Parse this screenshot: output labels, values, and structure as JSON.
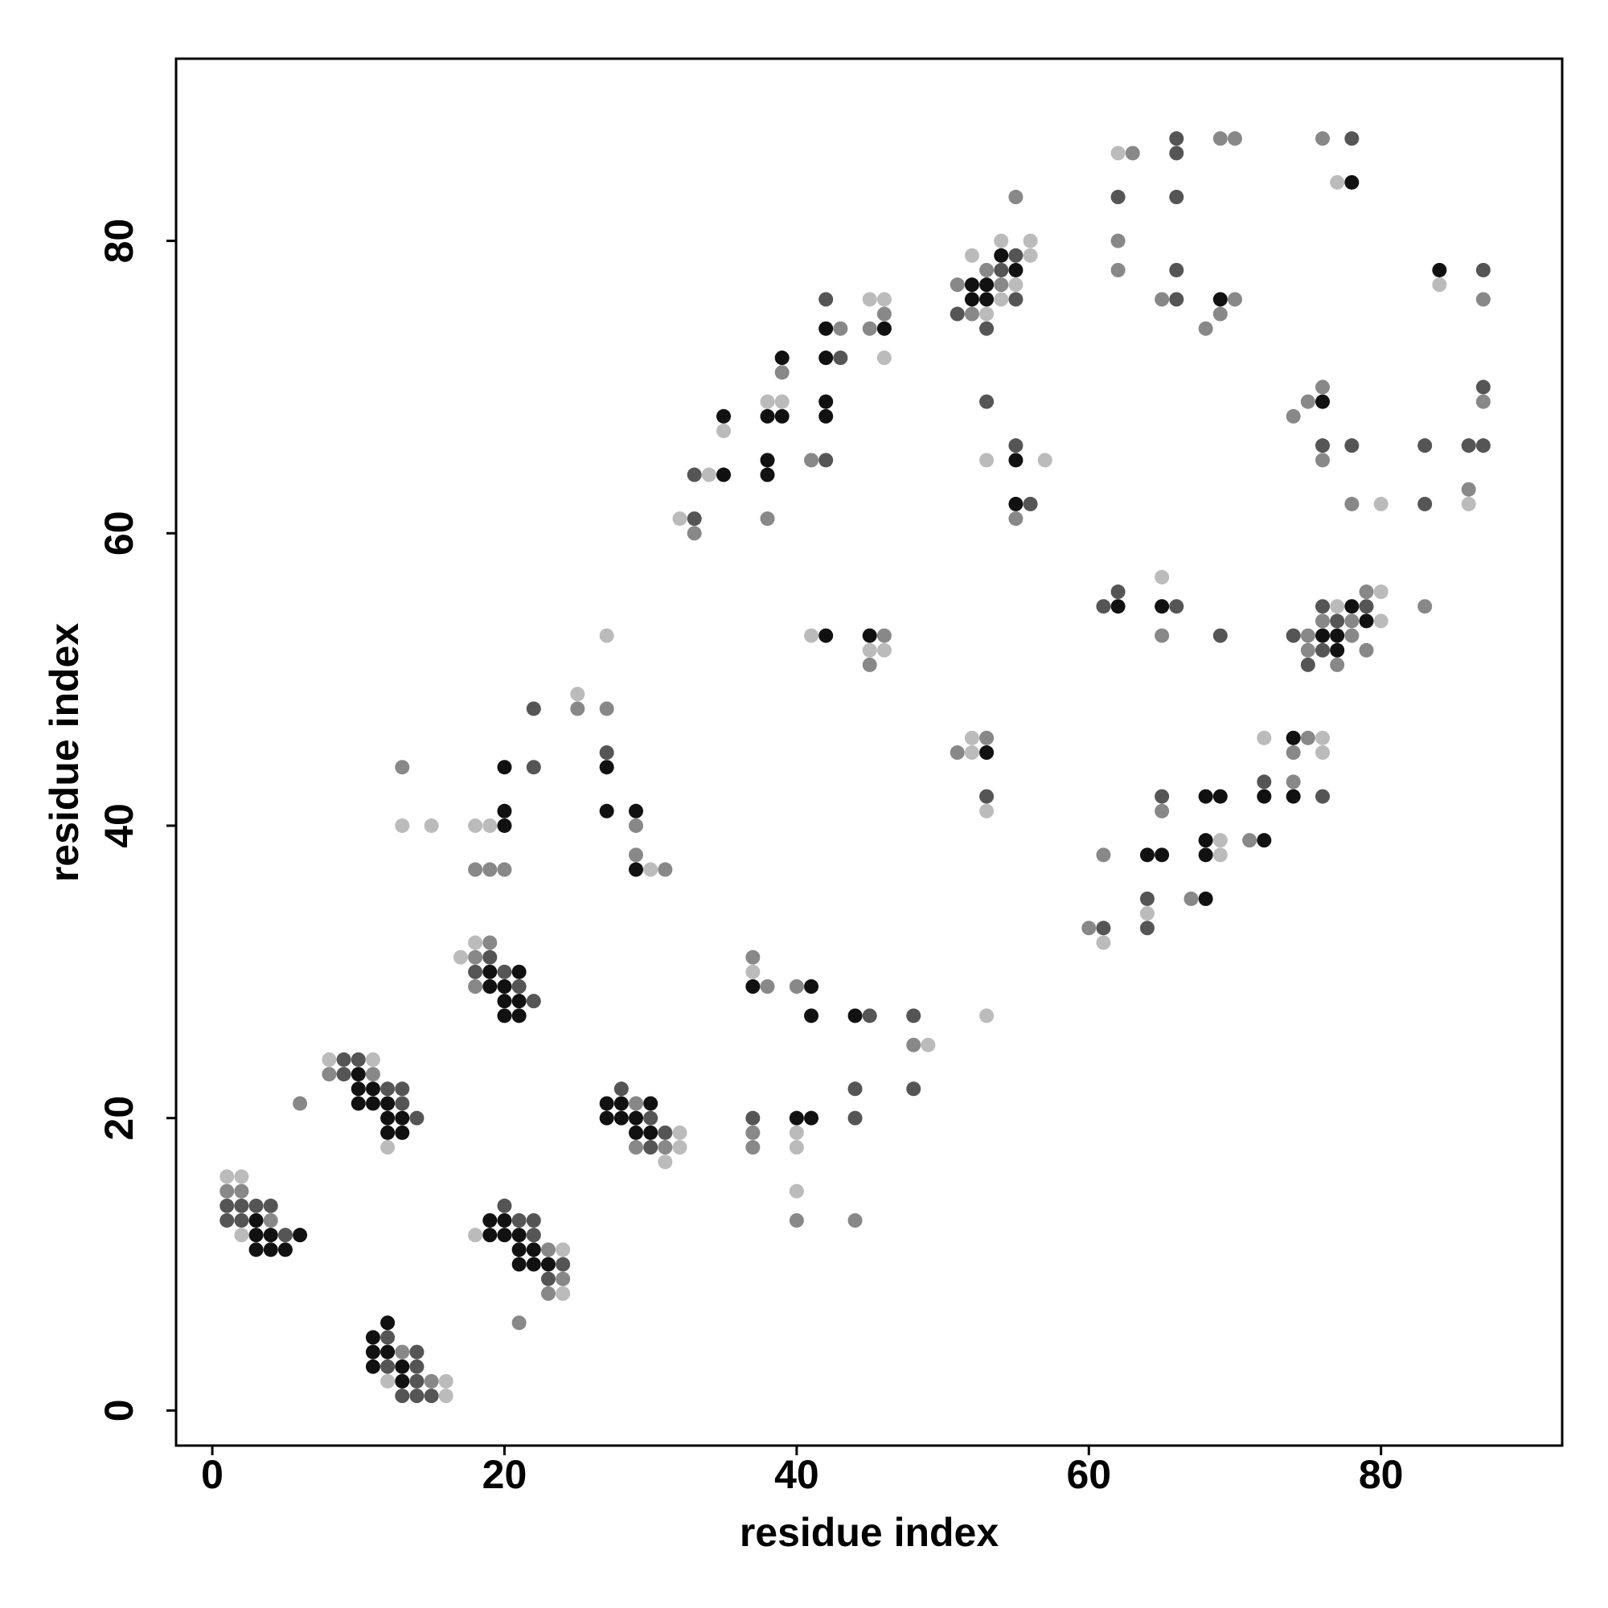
{
  "chart_data": {
    "type": "scatter",
    "x_label": "residue index",
    "y_label": "residue index",
    "xlim": [
      -2.48,
      92.4
    ],
    "ylim": [
      -2.4,
      92.46
    ],
    "xticks": [
      0,
      20,
      40,
      60,
      80
    ],
    "yticks": [
      0,
      20,
      40,
      60,
      80
    ],
    "x": [
      1,
      2,
      1,
      2,
      1,
      2,
      3,
      4,
      1,
      2,
      3,
      4,
      2,
      3,
      4,
      5,
      6,
      3,
      4,
      5,
      12,
      11,
      12,
      11,
      12,
      13,
      14,
      11,
      12,
      13,
      14,
      12,
      13,
      14,
      15,
      16,
      13,
      14,
      15,
      16,
      8,
      9,
      10,
      11,
      8,
      9,
      10,
      11,
      10,
      11,
      12,
      13,
      10,
      11,
      12,
      13,
      12,
      13,
      14,
      12,
      13,
      12,
      6,
      17,
      18,
      19,
      18,
      19,
      18,
      19,
      20,
      21,
      18,
      19,
      20,
      21,
      20,
      21,
      22,
      20,
      21,
      18,
      19,
      20,
      21,
      22,
      20,
      19,
      20,
      21,
      22,
      21,
      22,
      23,
      24,
      21,
      22,
      23,
      24,
      23,
      24,
      23,
      24,
      21,
      28,
      27,
      28,
      29,
      30,
      27,
      28,
      29,
      30,
      29,
      30,
      31,
      32,
      29,
      30,
      31,
      32,
      31,
      13,
      13,
      15,
      18,
      19,
      20,
      20,
      20,
      18,
      19,
      20,
      22,
      22,
      25,
      25,
      27,
      27,
      27,
      27,
      27,
      29,
      29,
      29,
      29,
      30,
      31,
      32,
      33,
      33,
      33,
      34,
      35,
      35,
      35,
      38,
      39,
      38,
      39,
      39,
      39,
      38,
      38,
      38,
      41,
      42,
      42,
      42,
      42,
      43,
      42,
      43,
      42,
      45,
      46,
      46,
      45,
      46,
      46,
      51,
      52,
      53,
      52,
      53,
      54,
      55,
      54,
      55,
      56,
      54,
      56,
      55,
      51,
      52,
      53,
      52,
      53,
      54,
      55,
      53,
      54,
      55,
      53,
      53,
      55,
      55,
      57,
      55,
      56,
      55,
      41,
      42,
      45,
      46,
      45,
      46,
      45,
      37,
      37,
      37,
      38,
      40,
      41,
      41,
      44,
      45,
      48,
      48,
      49,
      48,
      44,
      44,
      40,
      41,
      37,
      37,
      37,
      40,
      40,
      40,
      40,
      44,
      53,
      51,
      52,
      52,
      53,
      53,
      53,
      53,
      60,
      61,
      61,
      61,
      64,
      65,
      64,
      64,
      64,
      65,
      65,
      67,
      68,
      68,
      68,
      69,
      69,
      68,
      69,
      71,
      72,
      72,
      72,
      72,
      74,
      75,
      76,
      74,
      76,
      74,
      74,
      76,
      61,
      62,
      62,
      65,
      65,
      66,
      65,
      69,
      74,
      75,
      75,
      75,
      76,
      77,
      78,
      79,
      76,
      77,
      78,
      79,
      80,
      76,
      77,
      78,
      76,
      77,
      79,
      77,
      79,
      80,
      83,
      62,
      63,
      66,
      66,
      69,
      70,
      62,
      66,
      62,
      62,
      66,
      65,
      66,
      68,
      69,
      69,
      70,
      76,
      78,
      77,
      78,
      84,
      84,
      87,
      87,
      74,
      75,
      76,
      76,
      76,
      76,
      78,
      78,
      80,
      83,
      83,
      86,
      87,
      87,
      87,
      86,
      86
    ],
    "y": [
      16,
      16,
      15,
      15,
      14,
      14,
      14,
      14,
      13,
      13,
      13,
      13,
      12,
      12,
      12,
      12,
      12,
      11,
      11,
      11,
      6,
      5,
      5,
      4,
      4,
      4,
      4,
      3,
      3,
      3,
      3,
      2,
      2,
      2,
      2,
      2,
      1,
      1,
      1,
      1,
      24,
      24,
      24,
      24,
      23,
      23,
      23,
      23,
      22,
      22,
      22,
      22,
      21,
      21,
      21,
      21,
      20,
      20,
      20,
      19,
      19,
      18,
      21,
      31,
      32,
      32,
      31,
      31,
      30,
      30,
      30,
      30,
      29,
      29,
      29,
      29,
      28,
      28,
      28,
      27,
      27,
      12,
      13,
      13,
      13,
      13,
      14,
      12,
      12,
      12,
      12,
      11,
      11,
      11,
      11,
      10,
      10,
      10,
      10,
      9,
      9,
      8,
      8,
      6,
      22,
      21,
      21,
      21,
      21,
      20,
      20,
      20,
      20,
      19,
      19,
      19,
      19,
      18,
      18,
      18,
      18,
      17,
      44,
      40,
      40,
      40,
      40,
      40,
      41,
      44,
      37,
      37,
      37,
      44,
      48,
      49,
      48,
      53,
      48,
      45,
      44,
      41,
      41,
      40,
      38,
      37,
      37,
      37,
      61,
      61,
      60,
      64,
      64,
      64,
      68,
      67,
      69,
      69,
      68,
      68,
      71,
      72,
      65,
      64,
      61,
      65,
      65,
      68,
      69,
      72,
      72,
      74,
      74,
      76,
      76,
      76,
      75,
      74,
      74,
      72,
      77,
      77,
      77,
      79,
      78,
      78,
      78,
      79,
      79,
      79,
      80,
      80,
      83,
      75,
      76,
      76,
      75,
      75,
      76,
      76,
      74,
      77,
      77,
      69,
      65,
      66,
      65,
      65,
      62,
      62,
      61,
      53,
      53,
      53,
      53,
      52,
      52,
      51,
      31,
      30,
      29,
      29,
      29,
      29,
      27,
      27,
      27,
      27,
      25,
      25,
      22,
      22,
      20,
      20,
      20,
      20,
      19,
      18,
      19,
      18,
      15,
      13,
      13,
      27,
      45,
      45,
      46,
      46,
      45,
      42,
      41,
      33,
      33,
      32,
      38,
      38,
      38,
      35,
      34,
      33,
      42,
      41,
      35,
      35,
      38,
      39,
      39,
      38,
      42,
      42,
      39,
      39,
      42,
      43,
      46,
      46,
      46,
      46,
      45,
      45,
      43,
      42,
      42,
      55,
      55,
      56,
      57,
      55,
      55,
      53,
      53,
      53,
      53,
      52,
      51,
      55,
      55,
      55,
      55,
      54,
      54,
      54,
      54,
      54,
      53,
      53,
      53,
      52,
      52,
      52,
      51,
      56,
      56,
      55,
      86,
      86,
      87,
      86,
      87,
      87,
      83,
      83,
      80,
      78,
      78,
      76,
      76,
      74,
      75,
      76,
      76,
      87,
      87,
      84,
      84,
      78,
      77,
      78,
      76,
      68,
      69,
      69,
      70,
      66,
      65,
      66,
      62,
      62,
      66,
      62,
      66,
      66,
      70,
      69,
      63,
      62
    ],
    "colors": [
      "#bbb",
      "#bbb",
      "#888",
      "#888",
      "#555",
      "#555",
      "#555",
      "#555",
      "#555",
      "#555",
      "#111",
      "#888",
      "#bbb",
      "#111",
      "#111",
      "#555",
      "#111",
      "#111",
      "#111",
      "#111",
      "#111",
      "#111",
      "#555",
      "#111",
      "#111",
      "#888",
      "#555",
      "#111",
      "#555",
      "#111",
      "#555",
      "#bbb",
      "#111",
      "#555",
      "#888",
      "#bbb",
      "#555",
      "#555",
      "#555",
      "#bbb",
      "#bbb",
      "#555",
      "#555",
      "#bbb",
      "#888",
      "#555",
      "#111",
      "#888",
      "#111",
      "#111",
      "#555",
      "#555",
      "#111",
      "#111",
      "#111",
      "#555",
      "#111",
      "#111",
      "#555",
      "#111",
      "#111",
      "#bbb",
      "#888",
      "#bbb",
      "#bbb",
      "#888",
      "#888",
      "#555",
      "#555",
      "#111",
      "#555",
      "#111",
      "#888",
      "#111",
      "#111",
      "#555",
      "#111",
      "#111",
      "#555",
      "#111",
      "#111",
      "#bbb",
      "#111",
      "#111",
      "#555",
      "#555",
      "#555",
      "#111",
      "#111",
      "#111",
      "#555",
      "#111",
      "#111",
      "#888",
      "#bbb",
      "#111",
      "#111",
      "#111",
      "#555",
      "#555",
      "#888",
      "#888",
      "#bbb",
      "#888",
      "#555",
      "#111",
      "#111",
      "#888",
      "#111",
      "#111",
      "#111",
      "#111",
      "#555",
      "#111",
      "#111",
      "#555",
      "#bbb",
      "#888",
      "#555",
      "#888",
      "#bbb",
      "#bbb",
      "#888",
      "#bbb",
      "#bbb",
      "#bbb",
      "#bbb",
      "#111",
      "#111",
      "#111",
      "#888",
      "#888",
      "#888",
      "#555",
      "#555",
      "#bbb",
      "#888",
      "#bbb",
      "#888",
      "#555",
      "#111",
      "#111",
      "#111",
      "#888",
      "#888",
      "#111",
      "#bbb",
      "#888",
      "#bbb",
      "#555",
      "#888",
      "#555",
      "#bbb",
      "#111",
      "#111",
      "#bbb",
      "#bbb",
      "#bbb",
      "#111",
      "#111",
      "#888",
      "#111",
      "#111",
      "#111",
      "#888",
      "#888",
      "#555",
      "#111",
      "#111",
      "#111",
      "#555",
      "#111",
      "#888",
      "#555",
      "#bbb",
      "#bbb",
      "#888",
      "#888",
      "#111",
      "#bbb",
      "#888",
      "#111",
      "#111",
      "#bbb",
      "#888",
      "#555",
      "#111",
      "#111",
      "#555",
      "#bbb",
      "#bbb",
      "#bbb",
      "#888",
      "#555",
      "#111",
      "#111",
      "#888",
      "#bbb",
      "#bbb",
      "#555",
      "#555",
      "#888",
      "#bbb",
      "#555",
      "#bbb",
      "#555",
      "#111",
      "#bbb",
      "#111",
      "#555",
      "#888",
      "#bbb",
      "#111",
      "#111",
      "#888",
      "#bbb",
      "#bbb",
      "#888",
      "#888",
      "#bbb",
      "#111",
      "#888",
      "#888",
      "#111",
      "#111",
      "#111",
      "#555",
      "#555",
      "#888",
      "#bbb",
      "#555",
      "#555",
      "#555",
      "#111",
      "#111",
      "#555",
      "#888",
      "#888",
      "#bbb",
      "#bbb",
      "#bbb",
      "#888",
      "#888",
      "#bbb",
      "#888",
      "#bbb",
      "#bbb",
      "#888",
      "#111",
      "#555",
      "#bbb",
      "#888",
      "#555",
      "#bbb",
      "#888",
      "#111",
      "#111",
      "#555",
      "#bbb",
      "#555",
      "#555",
      "#888",
      "#888",
      "#111",
      "#111",
      "#111",
      "#bbb",
      "#bbb",
      "#111",
      "#111",
      "#888",
      "#111",
      "#111",
      "#555",
      "#bbb",
      "#111",
      "#888",
      "#bbb",
      "#888",
      "#bbb",
      "#888",
      "#111",
      "#555",
      "#555",
      "#111",
      "#555",
      "#bbb",
      "#111",
      "#555",
      "#888",
      "#555",
      "#555",
      "#888",
      "#888",
      "#555",
      "#555",
      "#bbb",
      "#111",
      "#555",
      "#888",
      "#555",
      "#888",
      "#111",
      "#bbb",
      "#111",
      "#111",
      "#888",
      "#555",
      "#111",
      "#888",
      "#888",
      "#888",
      "#bbb",
      "#888",
      "#bbb",
      "#888",
      "#555",
      "#555",
      "#888",
      "#888",
      "#555",
      "#555",
      "#888",
      "#888",
      "#555",
      "#888",
      "#555",
      "#888",
      "#888",
      "#111",
      "#888",
      "#888",
      "#555",
      "#bbb",
      "#111",
      "#111",
      "#bbb",
      "#555",
      "#888",
      "#888",
      "#888",
      "#111",
      "#888",
      "#555",
      "#888",
      "#555",
      "#888",
      "#bbb",
      "#555",
      "#555",
      "#555",
      "#555",
      "#555",
      "#888",
      "#888",
      "#bbb"
    ]
  }
}
